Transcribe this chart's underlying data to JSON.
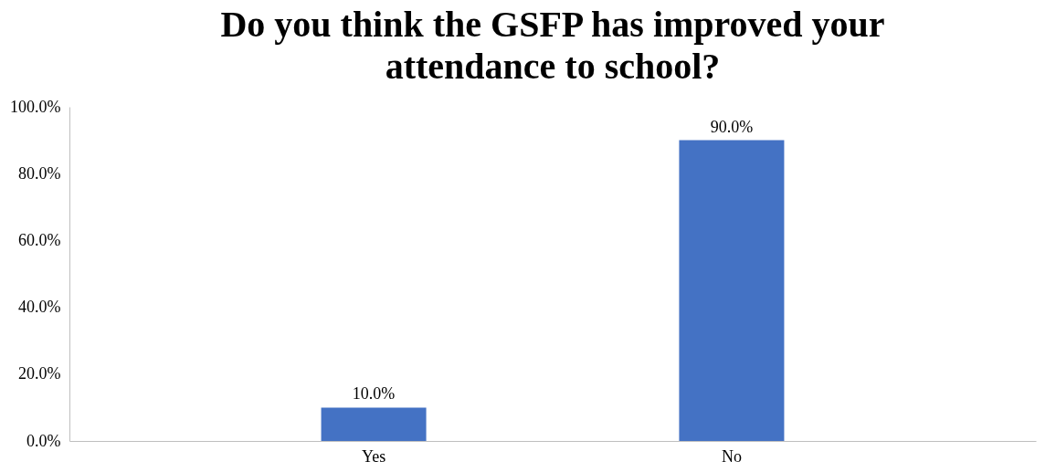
{
  "chart_data": {
    "type": "bar",
    "title": "Do you think the GSFP has improved your attendance to school?",
    "categories": [
      "Yes",
      "No"
    ],
    "values": [
      10,
      90
    ],
    "value_labels": [
      "10.0%",
      "90.0%"
    ],
    "color": "#4472c4",
    "ylim": [
      0,
      100
    ],
    "yticks": [
      {
        "value": 0,
        "label": "0.0%"
      },
      {
        "value": 20,
        "label": "20.0%"
      },
      {
        "value": 40,
        "label": "40.0%"
      },
      {
        "value": 60,
        "label": "60.0%"
      },
      {
        "value": 80,
        "label": "80.0%"
      },
      {
        "value": 100,
        "label": "100.0%"
      }
    ],
    "grid": false
  }
}
